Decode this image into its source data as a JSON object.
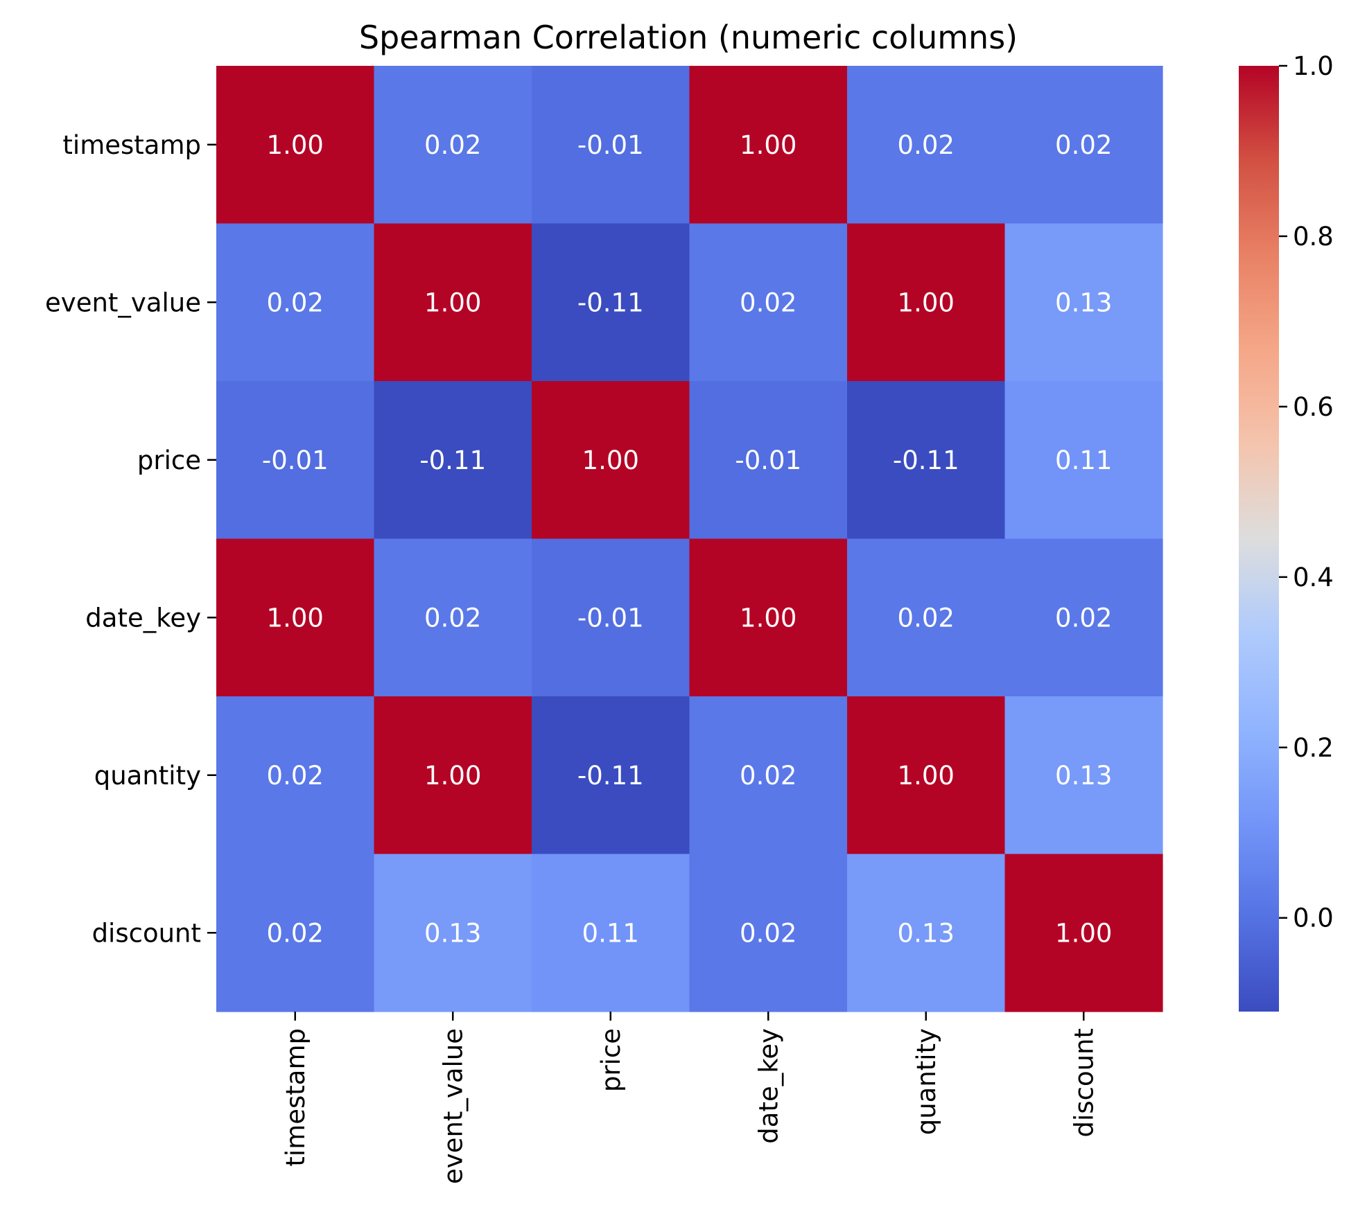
{
  "chart_data": {
    "type": "heatmap",
    "title": "Spearman Correlation (numeric columns)",
    "rows": [
      "timestamp",
      "event_value",
      "price",
      "date_key",
      "quantity",
      "discount"
    ],
    "columns": [
      "timestamp",
      "event_value",
      "price",
      "date_key",
      "quantity",
      "discount"
    ],
    "values": [
      [
        1.0,
        0.02,
        -0.01,
        1.0,
        0.02,
        0.02
      ],
      [
        0.02,
        1.0,
        -0.11,
        0.02,
        1.0,
        0.13
      ],
      [
        -0.01,
        -0.11,
        1.0,
        -0.01,
        -0.11,
        0.11
      ],
      [
        1.0,
        0.02,
        -0.01,
        1.0,
        0.02,
        0.02
      ],
      [
        0.02,
        1.0,
        -0.11,
        0.02,
        1.0,
        0.13
      ],
      [
        0.02,
        0.13,
        0.11,
        0.02,
        0.13,
        1.0
      ]
    ],
    "value_format": "0.00",
    "colormap": "coolwarm",
    "vmin": -0.11,
    "vmax": 1.0,
    "colorbar": {
      "ticks": [
        0.0,
        0.2,
        0.4,
        0.6,
        0.8,
        1.0
      ],
      "tick_labels": [
        "0.0",
        "0.2",
        "0.4",
        "0.6",
        "0.8",
        "1.0"
      ],
      "position": "right"
    },
    "grid": false
  }
}
